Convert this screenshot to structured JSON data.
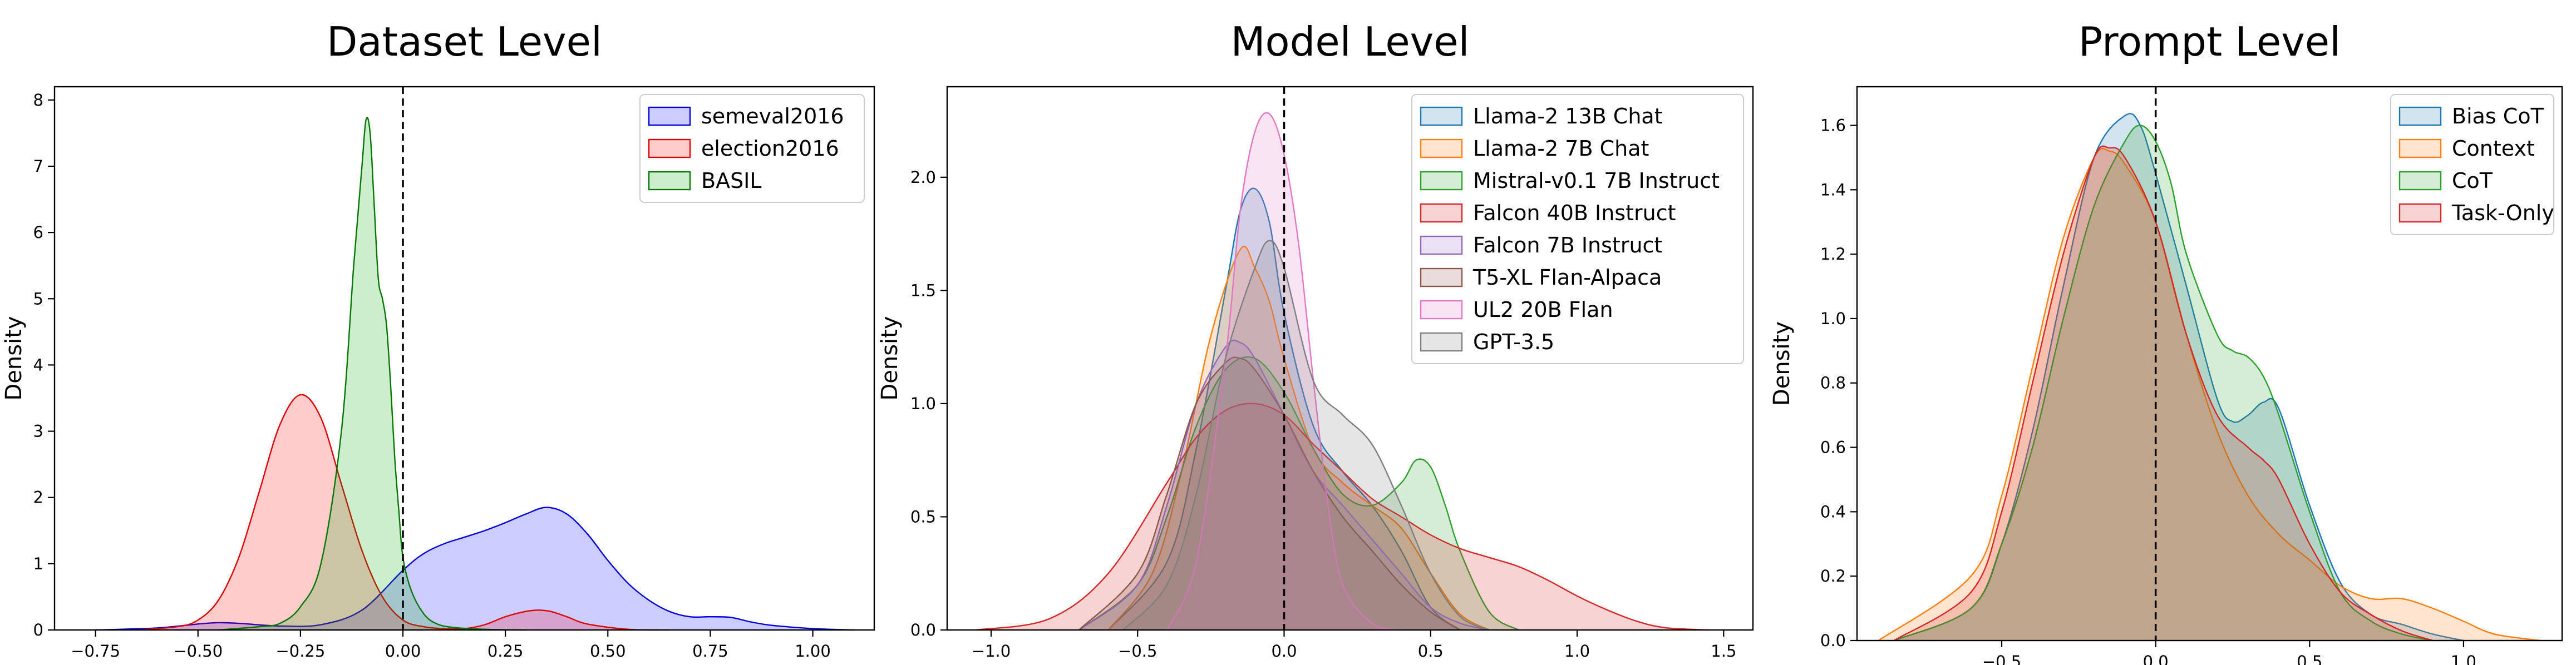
{
  "chart_data": [
    {
      "type": "area",
      "title": "Dataset Level",
      "ylabel": "Density",
      "xlim": [
        -0.85,
        1.15
      ],
      "ylim": [
        0,
        8.2
      ],
      "xticks": [
        -0.75,
        -0.5,
        -0.25,
        0.0,
        0.25,
        0.5,
        0.75,
        1.0
      ],
      "xtick_labels": [
        "−0.75",
        "−0.50",
        "−0.25",
        "0.00",
        "0.25",
        "0.50",
        "0.75",
        "1.00"
      ],
      "yticks": [
        0,
        1,
        2,
        3,
        4,
        5,
        6,
        7,
        8
      ],
      "ytick_labels": [
        "0",
        "1",
        "2",
        "3",
        "4",
        "5",
        "6",
        "7",
        "8"
      ],
      "vline": 0,
      "legend_position": "top-right",
      "series": [
        {
          "name": "semeval2016",
          "color": "#0000dd",
          "fill": "#0000ff",
          "opacity": 0.2,
          "x": [
            -0.75,
            -0.6,
            -0.5,
            -0.45,
            -0.4,
            -0.3,
            -0.2,
            -0.1,
            0,
            0.05,
            0.1,
            0.15,
            0.2,
            0.25,
            0.3,
            0.35,
            0.4,
            0.45,
            0.5,
            0.55,
            0.6,
            0.65,
            0.7,
            0.75,
            0.8,
            0.85,
            0.9,
            1.0,
            1.1
          ],
          "y": [
            0,
            0.03,
            0.09,
            0.11,
            0.1,
            0.06,
            0.08,
            0.3,
            0.9,
            1.15,
            1.3,
            1.4,
            1.5,
            1.62,
            1.75,
            1.85,
            1.75,
            1.45,
            1.05,
            0.7,
            0.45,
            0.28,
            0.2,
            0.2,
            0.19,
            0.12,
            0.07,
            0.02,
            0
          ]
        },
        {
          "name": "election2016",
          "color": "#dd0000",
          "fill": "#ff0000",
          "opacity": 0.2,
          "x": [
            -0.65,
            -0.55,
            -0.5,
            -0.45,
            -0.4,
            -0.35,
            -0.3,
            -0.25,
            -0.2,
            -0.15,
            -0.1,
            -0.05,
            0,
            0.05,
            0.1,
            0.15,
            0.2,
            0.25,
            0.3,
            0.33,
            0.36,
            0.4,
            0.45,
            0.55,
            0.65
          ],
          "y": [
            0,
            0.05,
            0.15,
            0.45,
            1.1,
            2.1,
            3.1,
            3.55,
            3.2,
            2.2,
            1.2,
            0.5,
            0.15,
            0.05,
            0.02,
            0.02,
            0.08,
            0.2,
            0.28,
            0.3,
            0.28,
            0.2,
            0.09,
            0.01,
            0
          ]
        },
        {
          "name": "BASIL",
          "color": "#007700",
          "fill": "#00aa00",
          "opacity": 0.2,
          "x": [
            -0.45,
            -0.35,
            -0.3,
            -0.25,
            -0.2,
            -0.15,
            -0.12,
            -0.1,
            -0.09,
            -0.08,
            -0.07,
            -0.06,
            -0.05,
            -0.04,
            -0.03,
            -0.02,
            -0.01,
            0,
            0.02,
            0.05,
            0.08,
            0.12,
            0.2,
            0.3
          ],
          "y": [
            0,
            0.05,
            0.1,
            0.35,
            1.0,
            3.0,
            5.5,
            7.0,
            7.7,
            7.5,
            6.4,
            5.3,
            5.0,
            4.6,
            3.7,
            2.6,
            1.8,
            1.1,
            0.6,
            0.25,
            0.1,
            0.04,
            0.01,
            0
          ]
        }
      ]
    },
    {
      "type": "area",
      "title": "Model Level",
      "ylabel": "Density",
      "xlim": [
        -1.15,
        1.6
      ],
      "ylim": [
        0,
        2.4
      ],
      "xticks": [
        -1.0,
        -0.5,
        0.0,
        0.5,
        1.0,
        1.5
      ],
      "xtick_labels": [
        "−1.0",
        "−0.5",
        "0.0",
        "0.5",
        "1.0",
        "1.5"
      ],
      "yticks": [
        0,
        0.5,
        1.0,
        1.5,
        2.0
      ],
      "ytick_labels": [
        "0.0",
        "0.5",
        "1.0",
        "1.5",
        "2.0"
      ],
      "vline": 0,
      "legend_position": "top-right",
      "series": [
        {
          "name": "Llama-2 13B Chat",
          "color": "#1f77b4",
          "fill": "#1f77b4",
          "opacity": 0.2,
          "x": [
            -0.6,
            -0.4,
            -0.3,
            -0.2,
            -0.15,
            -0.1,
            -0.05,
            0,
            0.1,
            0.2,
            0.3,
            0.4,
            0.5,
            0.6
          ],
          "y": [
            0,
            0.3,
            0.8,
            1.5,
            1.85,
            1.95,
            1.8,
            1.4,
            0.9,
            0.7,
            0.55,
            0.35,
            0.1,
            0
          ]
        },
        {
          "name": "Llama-2 7B Chat",
          "color": "#ff7f0e",
          "fill": "#ff7f0e",
          "opacity": 0.2,
          "x": [
            -0.6,
            -0.45,
            -0.35,
            -0.25,
            -0.15,
            -0.1,
            -0.05,
            0,
            0.1,
            0.2,
            0.3,
            0.4,
            0.5,
            0.6,
            0.7
          ],
          "y": [
            0,
            0.25,
            0.7,
            1.3,
            1.68,
            1.6,
            1.45,
            1.2,
            0.8,
            0.65,
            0.55,
            0.45,
            0.25,
            0.07,
            0
          ]
        },
        {
          "name": "Mistral-v0.1 7B Instruct",
          "color": "#2ca02c",
          "fill": "#2ca02c",
          "opacity": 0.2,
          "x": [
            -0.7,
            -0.5,
            -0.4,
            -0.3,
            -0.2,
            -0.1,
            0,
            0.1,
            0.2,
            0.3,
            0.4,
            0.45,
            0.5,
            0.55,
            0.6,
            0.7,
            0.8
          ],
          "y": [
            0,
            0.2,
            0.5,
            0.9,
            1.15,
            1.2,
            1.05,
            0.8,
            0.6,
            0.55,
            0.65,
            0.75,
            0.72,
            0.55,
            0.35,
            0.08,
            0
          ]
        },
        {
          "name": "Falcon 40B Instruct",
          "color": "#d62728",
          "fill": "#d62728",
          "opacity": 0.2,
          "x": [
            -1.05,
            -0.8,
            -0.6,
            -0.4,
            -0.3,
            -0.2,
            -0.1,
            0,
            0.1,
            0.2,
            0.3,
            0.4,
            0.5,
            0.6,
            0.7,
            0.8,
            0.9,
            1.0,
            1.1,
            1.2,
            1.3,
            1.45
          ],
          "y": [
            0,
            0.05,
            0.25,
            0.65,
            0.85,
            0.97,
            1.0,
            0.95,
            0.82,
            0.7,
            0.58,
            0.5,
            0.42,
            0.36,
            0.32,
            0.28,
            0.22,
            0.15,
            0.09,
            0.04,
            0.01,
            0
          ]
        },
        {
          "name": "Falcon 7B Instruct",
          "color": "#9467bd",
          "fill": "#9467bd",
          "opacity": 0.2,
          "x": [
            -0.7,
            -0.5,
            -0.4,
            -0.3,
            -0.2,
            -0.15,
            -0.1,
            0,
            0.1,
            0.2,
            0.3,
            0.4,
            0.5,
            0.6,
            0.7
          ],
          "y": [
            0,
            0.2,
            0.55,
            1.0,
            1.25,
            1.27,
            1.2,
            0.95,
            0.7,
            0.55,
            0.4,
            0.25,
            0.1,
            0.03,
            0
          ]
        },
        {
          "name": "T5-XL Flan-Alpaca",
          "color": "#8c564b",
          "fill": "#8c564b",
          "opacity": 0.2,
          "x": [
            -0.7,
            -0.5,
            -0.4,
            -0.3,
            -0.2,
            -0.15,
            -0.1,
            0,
            0.1,
            0.2,
            0.3,
            0.4,
            0.5,
            0.6
          ],
          "y": [
            0,
            0.25,
            0.6,
            1.0,
            1.18,
            1.2,
            1.15,
            0.95,
            0.7,
            0.5,
            0.35,
            0.2,
            0.08,
            0
          ]
        },
        {
          "name": "UL2 20B Flan",
          "color": "#e377c2",
          "fill": "#e377c2",
          "opacity": 0.2,
          "x": [
            -0.4,
            -0.3,
            -0.2,
            -0.15,
            -0.1,
            -0.05,
            0,
            0.05,
            0.1,
            0.15,
            0.2,
            0.3,
            0.4
          ],
          "y": [
            0,
            0.3,
            1.2,
            1.85,
            2.2,
            2.28,
            2.1,
            1.7,
            1.1,
            0.55,
            0.2,
            0.03,
            0
          ]
        },
        {
          "name": "GPT-3.5",
          "color": "#7f7f7f",
          "fill": "#7f7f7f",
          "opacity": 0.2,
          "x": [
            -0.55,
            -0.4,
            -0.3,
            -0.2,
            -0.1,
            -0.05,
            0,
            0.1,
            0.2,
            0.3,
            0.4,
            0.5,
            0.6,
            0.7
          ],
          "y": [
            0,
            0.2,
            0.6,
            1.2,
            1.6,
            1.72,
            1.6,
            1.1,
            0.95,
            0.82,
            0.55,
            0.25,
            0.06,
            0
          ]
        }
      ]
    },
    {
      "type": "area",
      "title": "Prompt Level",
      "ylabel": "Density",
      "xlim": [
        -0.97,
        1.32
      ],
      "ylim": [
        0,
        1.72
      ],
      "xticks": [
        -0.5,
        0.0,
        0.5,
        1.0
      ],
      "xtick_labels": [
        "−0.5",
        "0.0",
        "0.5",
        "1.0"
      ],
      "yticks": [
        0,
        0.2,
        0.4,
        0.6,
        0.8,
        1.0,
        1.2,
        1.4,
        1.6
      ],
      "ytick_labels": [
        "0.0",
        "0.2",
        "0.4",
        "0.6",
        "0.8",
        "1.0",
        "1.2",
        "1.4",
        "1.6"
      ],
      "vline": 0,
      "legend_position": "top-right",
      "series": [
        {
          "name": "Bias CoT",
          "color": "#1f77b4",
          "fill": "#1f77b4",
          "opacity": 0.2,
          "x": [
            -0.85,
            -0.6,
            -0.5,
            -0.4,
            -0.3,
            -0.2,
            -0.1,
            -0.05,
            0,
            0.1,
            0.2,
            0.25,
            0.3,
            0.35,
            0.4,
            0.5,
            0.6,
            0.7,
            0.8,
            0.9,
            1.0
          ],
          "y": [
            0,
            0.1,
            0.3,
            0.65,
            1.1,
            1.5,
            1.63,
            1.6,
            1.45,
            1.1,
            0.75,
            0.68,
            0.7,
            0.74,
            0.72,
            0.42,
            0.18,
            0.08,
            0.05,
            0.02,
            0
          ]
        },
        {
          "name": "Context",
          "color": "#ff7f0e",
          "fill": "#ff7f0e",
          "opacity": 0.2,
          "x": [
            -0.9,
            -0.6,
            -0.5,
            -0.4,
            -0.3,
            -0.2,
            -0.15,
            -0.1,
            0,
            0.1,
            0.2,
            0.3,
            0.4,
            0.5,
            0.6,
            0.7,
            0.8,
            0.9,
            1.0,
            1.1,
            1.25
          ],
          "y": [
            0,
            0.2,
            0.45,
            0.85,
            1.25,
            1.5,
            1.52,
            1.48,
            1.3,
            0.95,
            0.65,
            0.45,
            0.33,
            0.25,
            0.17,
            0.13,
            0.13,
            0.1,
            0.06,
            0.02,
            0
          ]
        },
        {
          "name": "CoT",
          "color": "#2ca02c",
          "fill": "#2ca02c",
          "opacity": 0.2,
          "x": [
            -0.85,
            -0.6,
            -0.5,
            -0.4,
            -0.3,
            -0.2,
            -0.1,
            -0.05,
            0,
            0.05,
            0.1,
            0.2,
            0.25,
            0.3,
            0.35,
            0.4,
            0.5,
            0.6,
            0.7,
            0.8,
            0.9
          ],
          "y": [
            0,
            0.1,
            0.3,
            0.6,
            1.0,
            1.35,
            1.55,
            1.6,
            1.55,
            1.42,
            1.2,
            0.95,
            0.9,
            0.88,
            0.82,
            0.7,
            0.4,
            0.15,
            0.06,
            0.02,
            0
          ]
        },
        {
          "name": "Task-Only",
          "color": "#d62728",
          "fill": "#d62728",
          "opacity": 0.2,
          "x": [
            -0.85,
            -0.6,
            -0.5,
            -0.4,
            -0.3,
            -0.2,
            -0.15,
            -0.1,
            0,
            0.1,
            0.2,
            0.3,
            0.35,
            0.4,
            0.5,
            0.6,
            0.7,
            0.8,
            0.9
          ],
          "y": [
            0,
            0.15,
            0.4,
            0.8,
            1.2,
            1.5,
            1.53,
            1.5,
            1.3,
            0.95,
            0.7,
            0.6,
            0.56,
            0.5,
            0.3,
            0.15,
            0.08,
            0.03,
            0
          ]
        }
      ]
    }
  ]
}
